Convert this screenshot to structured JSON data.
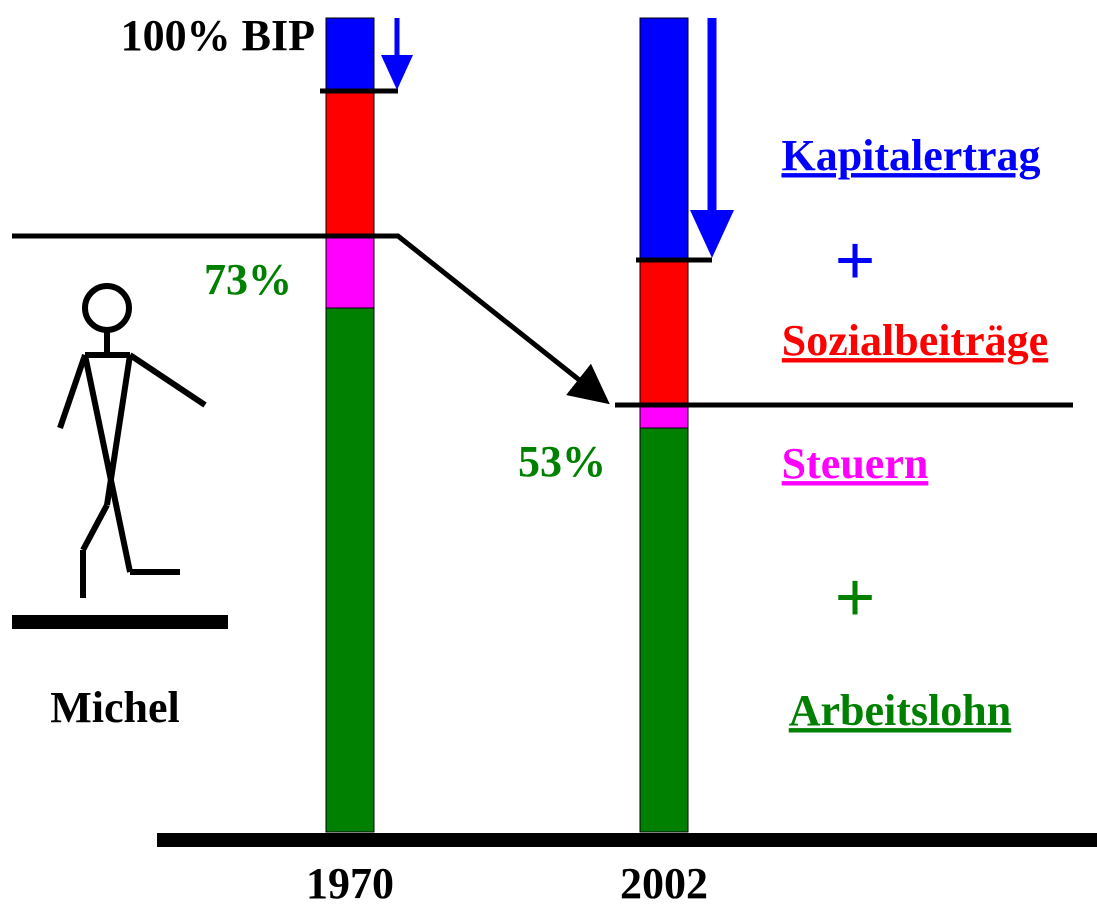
{
  "header": {
    "title": "100% BIP"
  },
  "bars": [
    {
      "year": "1970",
      "label": "73%"
    },
    {
      "year": "2002",
      "label": "53%"
    }
  ],
  "figure": {
    "label": "Michel"
  },
  "legend": [
    {
      "text": "Kapitalertrag"
    },
    {
      "text": "+"
    },
    {
      "text": "Sozialbeiträge"
    },
    {
      "text": "Steuern"
    },
    {
      "text": "+"
    },
    {
      "text": "Arbeitslohn"
    }
  ]
}
